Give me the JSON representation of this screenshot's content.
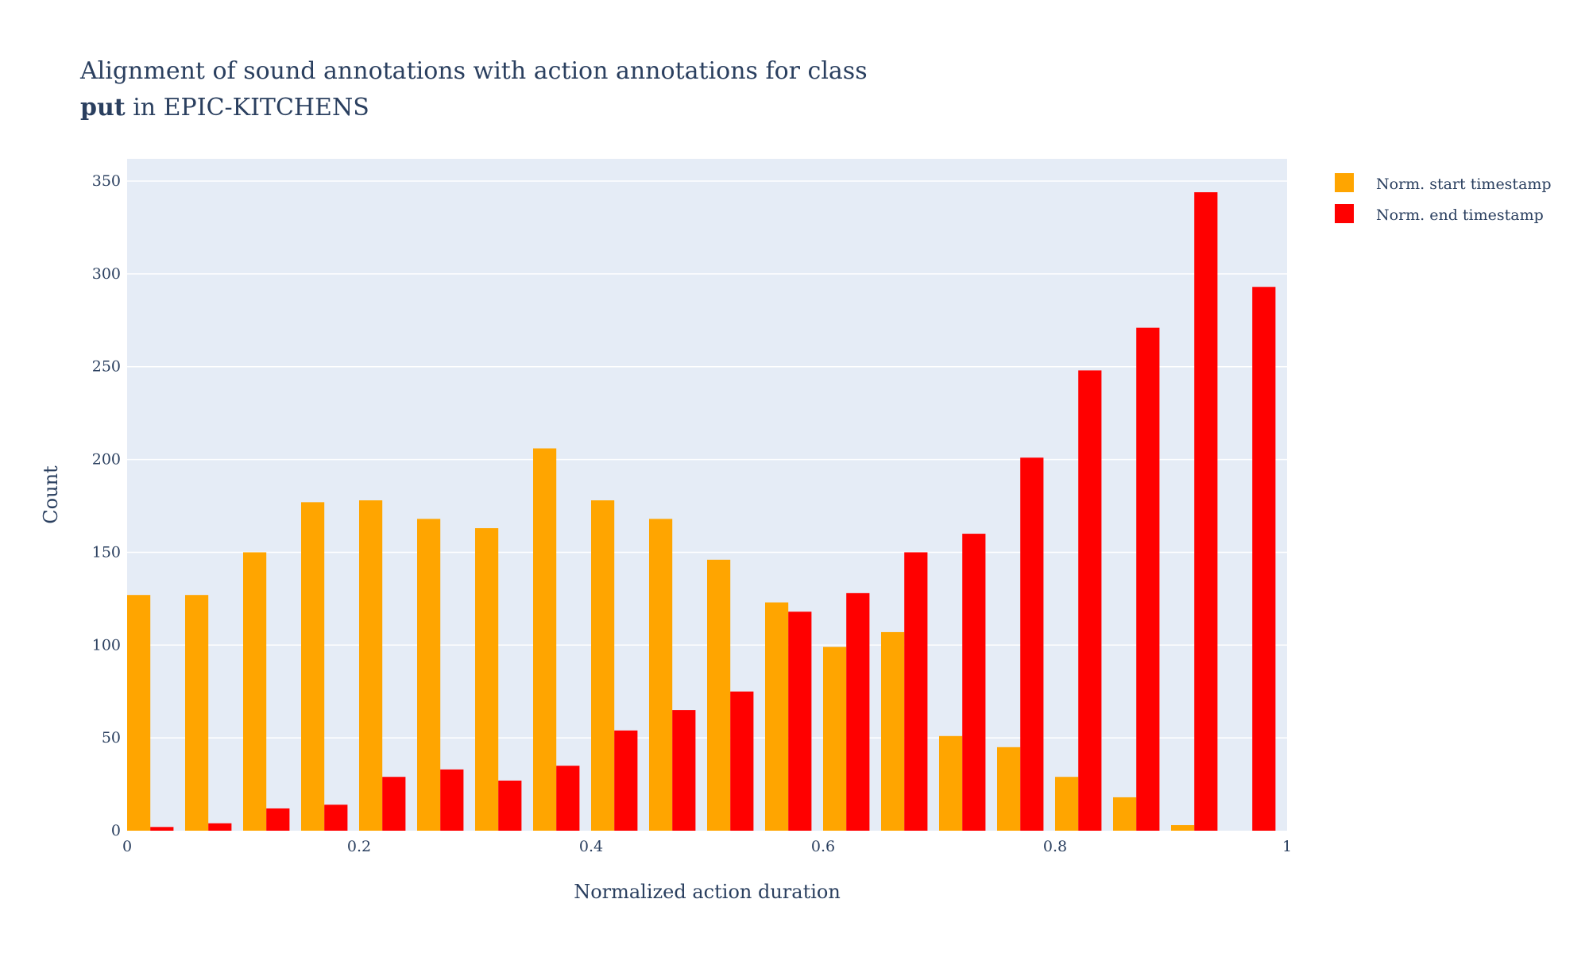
{
  "chart_data": {
    "type": "bar",
    "title_line1": "Alignment of sound annotations with action annotations for class",
    "title_line2_bold": "put",
    "title_line2_rest": " in EPIC-KITCHENS",
    "xlabel": "Normalized action duration",
    "ylabel": "Count",
    "xlim": [
      0,
      1
    ],
    "ylim": [
      0,
      362
    ],
    "x_ticks": [
      0,
      0.2,
      0.4,
      0.6,
      0.8,
      1
    ],
    "x_tick_labels": [
      "0",
      "0.2",
      "0.4",
      "0.6",
      "0.8",
      "1"
    ],
    "y_ticks": [
      0,
      50,
      100,
      150,
      200,
      250,
      300,
      350
    ],
    "y_tick_labels": [
      "0",
      "50",
      "100",
      "150",
      "200",
      "250",
      "300",
      "350"
    ],
    "bin_width": 0.05,
    "bin_starts": [
      0,
      0.05,
      0.1,
      0.15,
      0.2,
      0.25,
      0.3,
      0.35,
      0.4,
      0.45,
      0.5,
      0.55,
      0.6,
      0.65,
      0.7,
      0.75,
      0.8,
      0.85,
      0.9,
      0.95
    ],
    "series": [
      {
        "name": "Norm. start timestamp",
        "color": "#ffa500",
        "values": [
          127,
          127,
          150,
          177,
          178,
          168,
          163,
          206,
          178,
          168,
          146,
          123,
          99,
          107,
          51,
          45,
          29,
          18,
          3,
          0
        ]
      },
      {
        "name": "Norm. end timestamp",
        "color": "#ff0000",
        "values": [
          2,
          4,
          12,
          14,
          29,
          33,
          27,
          35,
          54,
          65,
          75,
          118,
          128,
          150,
          160,
          201,
          248,
          271,
          344,
          293
        ]
      }
    ],
    "plot_bgcolor": "#e5ecf6",
    "grid": true,
    "legend_position": "top-right, outside plot"
  }
}
